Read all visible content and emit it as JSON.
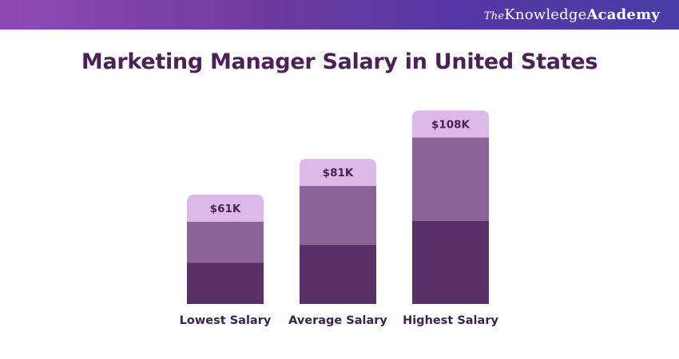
{
  "brand": {
    "the": "The",
    "knowledge": "Knowledge",
    "academy": "Academy"
  },
  "colors": {
    "top_segment": "#dcb9e6",
    "middle_segment": "#8a6397",
    "bottom_segment": "#592f67",
    "title": "#4b2157"
  },
  "chart_data": {
    "type": "bar",
    "title": "Marketing Manager Salary in United States",
    "categories": [
      "Lowest Salary",
      "Average Salary",
      "Highest Salary"
    ],
    "values": [
      61,
      81,
      108
    ],
    "value_labels": [
      "$61K",
      "$81K",
      "$108K"
    ],
    "unit": "K USD",
    "xlabel": "",
    "ylabel": "",
    "ylim": [
      0,
      120
    ],
    "grid": false,
    "legend": "none"
  }
}
